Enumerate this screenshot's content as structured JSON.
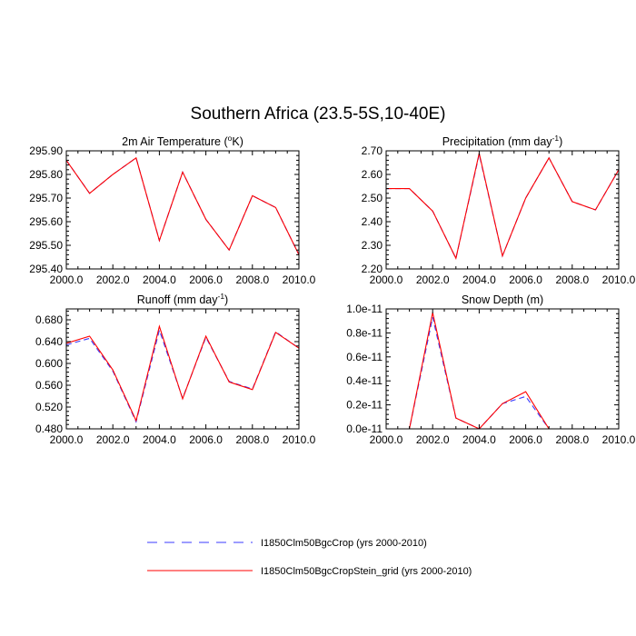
{
  "figure": {
    "title": "Southern Africa (23.5-5S,10-40E)"
  },
  "legend": {
    "entries": [
      {
        "label": "I1850Clm50BgcCrop (yrs 2000-2010)",
        "color": "#3b3bff",
        "dash": true
      },
      {
        "label": "I1850Clm50BgcCropStein_grid (yrs 2000-2010)",
        "color": "#ff0000",
        "dash": false
      }
    ]
  },
  "chart_data": [
    {
      "type": "line",
      "title": "2m Air Temperature (",
      "title_unit": "o",
      "title_suffix": "K)",
      "x": [
        2000,
        2001,
        2002,
        2003,
        2004,
        2005,
        2006,
        2007,
        2008,
        2009,
        2010
      ],
      "xlim": [
        2000,
        2010
      ],
      "ylim": [
        295.4,
        295.9
      ],
      "xticks": [
        "2000.0",
        "2002.0",
        "2004.0",
        "2006.0",
        "2008.0",
        "2010.0"
      ],
      "yticks": [
        "295.40",
        "295.50",
        "295.60",
        "295.70",
        "295.80",
        "295.90"
      ],
      "series": [
        {
          "values": [
            295.86,
            295.72,
            295.8,
            295.87,
            295.52,
            295.81,
            295.61,
            295.48,
            295.71,
            295.66,
            295.46
          ]
        },
        {
          "values": [
            295.86,
            295.72,
            295.8,
            295.87,
            295.52,
            295.81,
            295.61,
            295.48,
            295.71,
            295.66,
            295.46
          ]
        }
      ]
    },
    {
      "type": "line",
      "title": "Precipitation (mm day",
      "title_unit": "-1",
      "title_suffix": ")",
      "x": [
        2000,
        2001,
        2002,
        2003,
        2004,
        2005,
        2006,
        2007,
        2008,
        2009,
        2010
      ],
      "xlim": [
        2000,
        2010
      ],
      "ylim": [
        2.2,
        2.7
      ],
      "xticks": [
        "2000.0",
        "2002.0",
        "2004.0",
        "2006.0",
        "2008.0",
        "2010.0"
      ],
      "yticks": [
        "2.20",
        "2.30",
        "2.40",
        "2.50",
        "2.60",
        "2.70"
      ],
      "series": [
        {
          "values": [
            2.54,
            2.54,
            2.445,
            2.245,
            2.685,
            2.255,
            2.5,
            2.67,
            2.485,
            2.45,
            2.62
          ]
        },
        {
          "values": [
            2.54,
            2.54,
            2.445,
            2.245,
            2.69,
            2.255,
            2.5,
            2.67,
            2.485,
            2.45,
            2.62
          ]
        }
      ]
    },
    {
      "type": "line",
      "title": "Runoff (mm day",
      "title_unit": "-1",
      "title_suffix": ")",
      "x": [
        2000,
        2001,
        2002,
        2003,
        2004,
        2005,
        2006,
        2007,
        2008,
        2009,
        2010
      ],
      "xlim": [
        2000,
        2010
      ],
      "ylim": [
        0.48,
        0.7
      ],
      "xticks": [
        "2000.0",
        "2002.0",
        "2004.0",
        "2006.0",
        "2008.0",
        "2010.0"
      ],
      "yticks": [
        "0.480",
        "0.520",
        "0.560",
        "0.600",
        "0.640",
        "0.680"
      ],
      "series": [
        {
          "values": [
            0.634,
            0.646,
            0.586,
            0.493,
            0.661,
            0.536,
            0.648,
            0.567,
            0.553,
            0.658,
            0.628
          ]
        },
        {
          "values": [
            0.637,
            0.65,
            0.588,
            0.495,
            0.668,
            0.535,
            0.65,
            0.566,
            0.552,
            0.657,
            0.628
          ]
        }
      ]
    },
    {
      "type": "line",
      "title": "Snow Depth (m)",
      "title_unit": "",
      "title_suffix": "",
      "x": [
        2000,
        2001,
        2002,
        2003,
        2004,
        2005,
        2006,
        2007,
        2008,
        2009,
        2010
      ],
      "xlim": [
        2000,
        2010
      ],
      "ylim": [
        0.0,
        1.0
      ],
      "xticks": [
        "2000.0",
        "2002.0",
        "2004.0",
        "2006.0",
        "2008.0",
        "2010.0"
      ],
      "yticks": [
        "0.0e-11",
        "0.2e-11",
        "0.4e-11",
        "0.6e-11",
        "0.8e-11",
        "1.0e-11"
      ],
      "series": [
        {
          "values": [
            0.0,
            0.0,
            0.93,
            0.09,
            0.0,
            0.21,
            0.27,
            0.0,
            0.0,
            0.0,
            0.0
          ]
        },
        {
          "values": [
            0.0,
            0.0,
            0.97,
            0.09,
            0.0,
            0.21,
            0.31,
            0.0,
            0.0,
            0.0,
            0.0
          ]
        }
      ]
    }
  ]
}
